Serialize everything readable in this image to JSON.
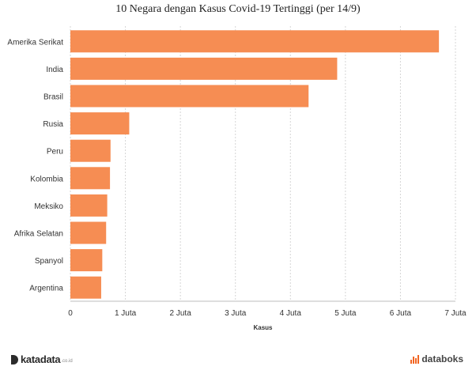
{
  "chart_data": {
    "type": "bar",
    "orientation": "horizontal",
    "title": "10 Negara dengan Kasus Covid-19 Tertinggi (per 14/9)",
    "xlabel": "Kasus",
    "ylabel": "",
    "categories": [
      "Amerika Serikat",
      "India",
      "Brasil",
      "Rusia",
      "Peru",
      "Kolombia",
      "Meksiko",
      "Afrika Selatan",
      "Spanyol",
      "Argentina"
    ],
    "values": [
      6700000,
      4850000,
      4330000,
      1070000,
      730000,
      720000,
      670000,
      650000,
      580000,
      560000
    ],
    "xlim": [
      0,
      7000000
    ],
    "xticks": [
      0,
      1000000,
      2000000,
      3000000,
      4000000,
      5000000,
      6000000,
      7000000
    ],
    "xtick_labels": [
      "0",
      "1 Juta",
      "2 Juta",
      "3 Juta",
      "4 Juta",
      "5 Juta",
      "6 Juta",
      "7 Juta"
    ],
    "grid": true,
    "legend": "none",
    "bar_color": "#f68d53"
  },
  "footer": {
    "left_brand": "katadata",
    "left_suffix": ".co.id",
    "right_brand": "databoks",
    "right_color": "#f26522"
  }
}
